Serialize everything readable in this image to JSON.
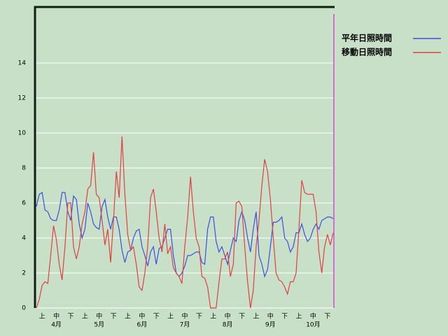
{
  "chart_data": {
    "type": "line",
    "categories": [
      null,
      null,
      "上",
      null,
      null,
      null,
      null,
      "中",
      null,
      null,
      null,
      null,
      "下",
      null,
      null,
      null,
      null,
      "上",
      null,
      null,
      null,
      null,
      "中",
      null,
      null,
      null,
      null,
      "下",
      null,
      null,
      null,
      null,
      "上",
      null,
      null,
      null,
      null,
      "中",
      null,
      null,
      null,
      null,
      "下",
      null,
      null,
      null,
      null,
      "上",
      null,
      null,
      null,
      null,
      "中",
      null,
      null,
      null,
      null,
      "下",
      null,
      null,
      null,
      null,
      "上",
      null,
      null,
      null,
      null,
      "中",
      null,
      null,
      null,
      null,
      "下",
      null,
      null,
      null,
      null,
      "上",
      null,
      null,
      null,
      null,
      "中",
      null,
      null,
      null,
      null,
      "下",
      null,
      null,
      null,
      null,
      "上",
      null,
      null,
      null,
      null,
      "中",
      null,
      null,
      null,
      null,
      "下",
      null,
      null
    ],
    "month_labels": [
      null,
      null,
      null,
      null,
      null,
      null,
      null,
      "4月",
      null,
      null,
      null,
      null,
      null,
      null,
      null,
      null,
      null,
      null,
      null,
      null,
      null,
      null,
      "5月",
      null,
      null,
      null,
      null,
      null,
      null,
      null,
      null,
      null,
      null,
      null,
      null,
      null,
      null,
      "6月",
      null,
      null,
      null,
      null,
      null,
      null,
      null,
      null,
      null,
      null,
      null,
      null,
      null,
      null,
      "7月",
      null,
      null,
      null,
      null,
      null,
      null,
      null,
      null,
      null,
      null,
      null,
      null,
      null,
      null,
      "8月",
      null,
      null,
      null,
      null,
      null,
      null,
      null,
      null,
      null,
      null,
      null,
      null,
      null,
      null,
      "9月",
      null,
      null,
      null,
      null,
      null,
      null,
      null,
      null,
      null,
      null,
      null,
      null,
      null,
      null,
      "10月",
      null,
      null,
      null,
      null,
      null,
      null,
      null
    ],
    "series": [
      {
        "name": "平年日照時間",
        "color": "#3c50e0",
        "values": [
          5.8,
          6.5,
          6.6,
          5.6,
          5.5,
          5.1,
          5.0,
          5.0,
          5.6,
          6.6,
          6.6,
          5.5,
          5.0,
          6.4,
          6.2,
          4.8,
          4.0,
          4.5,
          6.0,
          5.5,
          4.8,
          4.6,
          4.5,
          5.8,
          6.2,
          5.2,
          4.5,
          5.2,
          5.2,
          4.5,
          3.3,
          2.6,
          3.2,
          3.3,
          4.0,
          4.4,
          4.5,
          3.5,
          3.0,
          2.4,
          3.2,
          3.5,
          2.5,
          3.4,
          3.5,
          4.0,
          4.5,
          4.5,
          3.0,
          2.0,
          1.8,
          2.0,
          2.4,
          3.0,
          3.0,
          3.1,
          3.2,
          3.2,
          2.6,
          2.5,
          4.5,
          5.2,
          5.2,
          3.8,
          3.2,
          3.5,
          3.0,
          2.5,
          3.3,
          4.0,
          3.8,
          5.0,
          5.5,
          5.0,
          4.0,
          3.2,
          4.5,
          5.5,
          3.0,
          2.5,
          1.8,
          2.2,
          3.5,
          4.9,
          4.9,
          5.0,
          5.2,
          4.0,
          3.8,
          3.2,
          3.5,
          4.3,
          4.3,
          4.8,
          4.2,
          3.8,
          4.0,
          4.5,
          4.8,
          4.5,
          5.0,
          5.1,
          5.2,
          5.2,
          5.1
        ]
      },
      {
        "name": "移動日照時間",
        "color": "#e04040",
        "values": [
          0,
          0.5,
          1.3,
          1.5,
          1.4,
          3.0,
          4.7,
          3.9,
          2.5,
          1.6,
          3.5,
          6.0,
          6.0,
          3.5,
          2.8,
          3.5,
          4.8,
          5.5,
          6.8,
          7.0,
          8.9,
          6.5,
          6.3,
          5.0,
          3.6,
          4.5,
          2.6,
          5.0,
          7.8,
          6.3,
          9.8,
          6.5,
          4.2,
          3.3,
          3.5,
          2.5,
          1.2,
          1.0,
          2.0,
          3.5,
          6.3,
          6.8,
          5.5,
          4.0,
          3.2,
          4.8,
          3.1,
          3.5,
          2.3,
          2.0,
          1.8,
          1.4,
          3.5,
          5.2,
          7.5,
          5.5,
          4.0,
          3.5,
          1.8,
          1.7,
          1.2,
          0,
          0,
          0,
          1.5,
          2.8,
          2.8,
          3.2,
          1.8,
          2.5,
          6.0,
          6.1,
          5.8,
          3.5,
          1.5,
          0,
          1.0,
          3.5,
          5.0,
          7.0,
          8.5,
          7.8,
          6.2,
          4.0,
          2.0,
          1.6,
          1.5,
          1.2,
          0.8,
          1.5,
          1.5,
          2.0,
          4.5,
          7.3,
          6.6,
          6.5,
          6.5,
          6.5,
          5.5,
          3.2,
          2.0,
          3.5,
          4.2,
          3.6,
          4.3
        ]
      }
    ],
    "ylim": [
      0,
      17.2
    ],
    "yticks": [
      0,
      2,
      4,
      6,
      8,
      10,
      12,
      14
    ],
    "grid": true
  }
}
